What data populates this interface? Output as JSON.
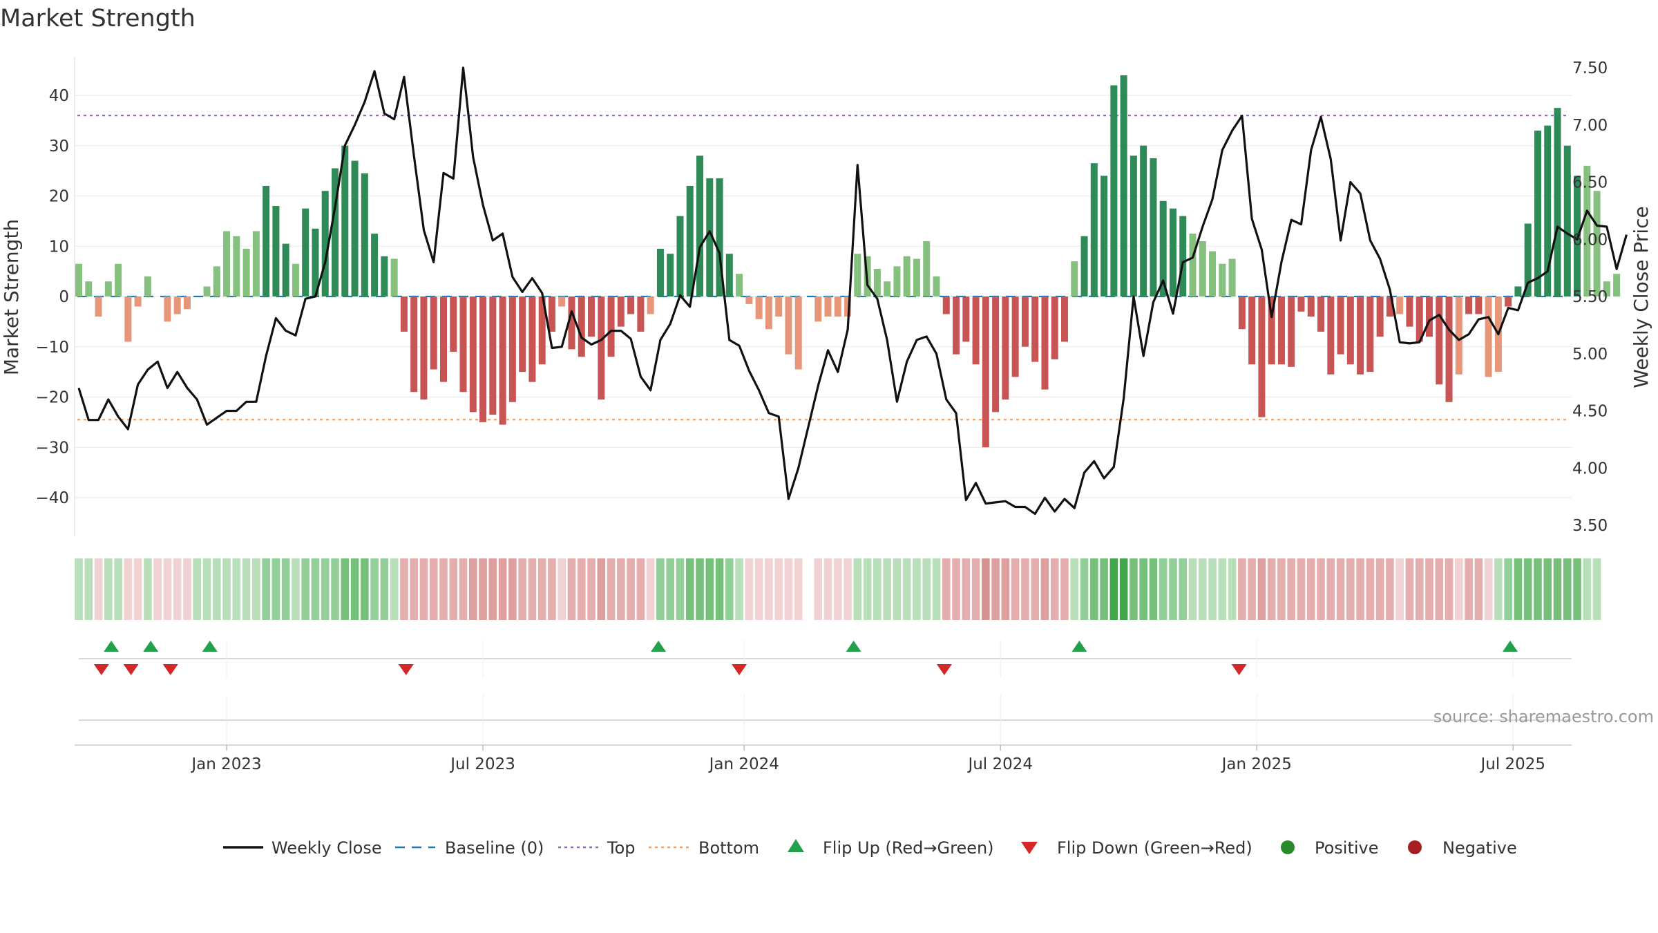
{
  "title": "Market Strength",
  "source": "source: sharemaestro.com",
  "chart_data": {
    "type": "bar+line",
    "title": "Market Strength",
    "y_left_label": "Market Strength",
    "y_right_label": "Weekly Close Price",
    "y_left_ticks": [
      40,
      30,
      20,
      10,
      0,
      -10,
      -20,
      -30,
      -40
    ],
    "y_left_tick_labels": [
      "40",
      "30",
      "20",
      "10",
      "0",
      "−10",
      "−20",
      "−30",
      "−40"
    ],
    "y_left_range": [
      -48,
      48
    ],
    "y_right_ticks": [
      7.5,
      7.0,
      6.5,
      6.0,
      5.5,
      5.0,
      4.5,
      4.0,
      3.5
    ],
    "y_right_tick_labels": [
      "7.50",
      "7.00",
      "6.50",
      "6.00",
      "5.50",
      "5.00",
      "4.50",
      "4.00",
      "3.50"
    ],
    "y_right_range": [
      3.4,
      7.6
    ],
    "x_tick_labels": [
      "Jan 2023",
      "Jul 2023",
      "Jan 2024",
      "Jul 2024",
      "Jan 2025",
      "Jul 2025"
    ],
    "x_tick_weeks": [
      15,
      41,
      67.5,
      93.5,
      119.5,
      145.5
    ],
    "num_weeks": 157,
    "top_line": 36,
    "bottom_line": -24.5,
    "strength": [
      6.5,
      3,
      -4,
      3,
      6.5,
      -9,
      -2,
      4,
      0,
      -5,
      -3.5,
      -2.5,
      0,
      2,
      6,
      13,
      12,
      9.5,
      13,
      22,
      18,
      10.5,
      6.5,
      17.5,
      13.5,
      21,
      25.5,
      30,
      27,
      24.5,
      12.5,
      8,
      7.5,
      -7,
      -19,
      -20.5,
      -14.5,
      -17,
      -11,
      -19,
      -23,
      -25,
      -23.5,
      -25.5,
      -21,
      -15,
      -17,
      -13.5,
      -7,
      -2,
      -10.5,
      -12,
      -8,
      -20.5,
      -12,
      -6,
      -3.5,
      -7,
      -3.5,
      9.5,
      8.5,
      16,
      22,
      28,
      23.5,
      23.5,
      8.5,
      4.5,
      -1.5,
      -4.5,
      -6.5,
      -4,
      -11.5,
      -14.5,
      0,
      -5,
      -4,
      -4,
      -4,
      8.5,
      8,
      5.5,
      3,
      6,
      8,
      7.5,
      11,
      4,
      -3.5,
      -11.5,
      -9,
      -13.5,
      -30,
      -23,
      -20.5,
      -16,
      -10,
      -13,
      -18.5,
      -12.5,
      -9,
      7,
      12,
      26.5,
      24,
      42,
      44,
      28,
      30,
      27.5,
      19,
      17.5,
      16,
      12.5,
      11,
      9,
      6.5,
      7.5,
      -6.5,
      -13.5,
      -24,
      -13.5,
      -13.5,
      -14,
      -3,
      -4,
      -7,
      -15.5,
      -11.5,
      -13.5,
      -15.5,
      -15,
      -8,
      -4,
      -3.5,
      -6,
      -9,
      -8,
      -17.5,
      -21,
      -15.5,
      -3.5,
      -3.5,
      -16,
      -15,
      -2,
      2,
      14.5,
      33,
      34,
      37.5,
      30,
      24,
      26,
      21,
      3,
      4.5
    ],
    "weekly_close": [
      4.7,
      4.42,
      4.42,
      4.6,
      4.45,
      4.34,
      4.73,
      4.86,
      4.93,
      4.7,
      4.84,
      4.7,
      4.6,
      4.38,
      4.44,
      4.5,
      4.5,
      4.58,
      4.58,
      4.98,
      5.31,
      5.2,
      5.16,
      5.48,
      5.5,
      5.8,
      6.28,
      6.82,
      7.0,
      7.2,
      7.47,
      7.1,
      7.05,
      7.42,
      6.73,
      6.08,
      5.8,
      6.58,
      6.53,
      7.5,
      6.72,
      6.3,
      5.99,
      6.05,
      5.67,
      5.54,
      5.66,
      5.53,
      5.05,
      5.06,
      5.37,
      5.14,
      5.08,
      5.12,
      5.2,
      5.2,
      5.13,
      4.8,
      4.68,
      5.12,
      5.26,
      5.51,
      5.41,
      5.93,
      6.07,
      5.88,
      5.12,
      5.07,
      4.85,
      4.68,
      4.48,
      4.45,
      3.73,
      4.0,
      4.36,
      4.72,
      5.03,
      4.84,
      5.21,
      6.65,
      5.6,
      5.48,
      5.12,
      4.58,
      4.93,
      5.12,
      5.15,
      5.0,
      4.6,
      4.48,
      3.72,
      3.87,
      3.69,
      3.7,
      3.71,
      3.66,
      3.66,
      3.6,
      3.74,
      3.62,
      3.73,
      3.65,
      3.96,
      4.06,
      3.91,
      4.01,
      4.61,
      5.5,
      4.98,
      5.45,
      5.64,
      5.35,
      5.8,
      5.84,
      6.11,
      6.35,
      6.78,
      6.95,
      7.08,
      6.18,
      5.91,
      5.32,
      5.8,
      6.17,
      6.13,
      6.78,
      7.07,
      6.7,
      5.99,
      6.5,
      6.4,
      5.99,
      5.83,
      5.56,
      5.1,
      5.09,
      5.1,
      5.29,
      5.34,
      5.21,
      5.12,
      5.17,
      5.3,
      5.32,
      5.17,
      5.4,
      5.38,
      5.62,
      5.66,
      5.72,
      6.11,
      6.05,
      6.0,
      6.25,
      6.12,
      6.11,
      5.74,
      6.04
    ],
    "shading_levels": [
      1,
      1,
      -1,
      1,
      1,
      -1,
      -1,
      1,
      -1,
      -1,
      -1,
      -1,
      1,
      1,
      1,
      1,
      1,
      1,
      1,
      2,
      2,
      2,
      1,
      2,
      2,
      2,
      2,
      3,
      3,
      3,
      2,
      2,
      1,
      -2,
      -2,
      -2,
      -2,
      -2,
      -2,
      -2,
      -3,
      -3,
      -3,
      -3,
      -3,
      -2,
      -2,
      -2,
      -2,
      -1,
      -2,
      -2,
      -2,
      -3,
      -2,
      -2,
      -2,
      -2,
      -1,
      2,
      2,
      2,
      3,
      3,
      3,
      3,
      2,
      1,
      -1,
      -1,
      -1,
      -1,
      -1,
      -1,
      0,
      -1,
      -1,
      -1,
      -1,
      1,
      1,
      1,
      1,
      1,
      1,
      1,
      1,
      1,
      -2,
      -2,
      -2,
      -2,
      -4,
      -3,
      -3,
      -2,
      -2,
      -2,
      -3,
      -2,
      -2,
      1,
      2,
      3,
      3,
      5,
      5,
      3,
      3,
      3,
      2,
      2,
      2,
      1,
      1,
      1,
      1,
      1,
      -2,
      -2,
      -3,
      -2,
      -2,
      -2,
      -2,
      -2,
      -2,
      -2,
      -2,
      -2,
      -2,
      -2,
      -2,
      -2,
      -1,
      -2,
      -2,
      -2,
      -2,
      -2,
      -1,
      -2,
      -2,
      -1,
      1,
      2,
      3,
      3,
      3,
      3,
      3,
      3,
      3,
      1,
      1
    ],
    "flip_up_weeks": [
      3.3,
      7.3,
      13.3,
      58.8,
      78.6,
      101.5,
      145.2
    ],
    "flip_down_weeks": [
      2.3,
      5.3,
      9.3,
      33.2,
      67.0,
      87.8,
      117.7
    ],
    "legend": [
      "Weekly Close",
      "Baseline (0)",
      "Top",
      "Bottom",
      "Flip Up (Red→Green)",
      "Flip Down (Green→Red)",
      "Positive",
      "Negative"
    ],
    "colors": {
      "pos_dark": "#2e8b57",
      "pos_light": "#86c07e",
      "neg_dark": "#c85454",
      "neg_light": "#e8967a",
      "close_line": "#111111",
      "baseline": "#1f77b4",
      "top": "#9467bd",
      "bottom": "#f2a05a",
      "flip_up": "#22a04a",
      "flip_down": "#d62728",
      "positive_dot": "#2a8a2a",
      "negative_dot": "#a61e22"
    }
  }
}
